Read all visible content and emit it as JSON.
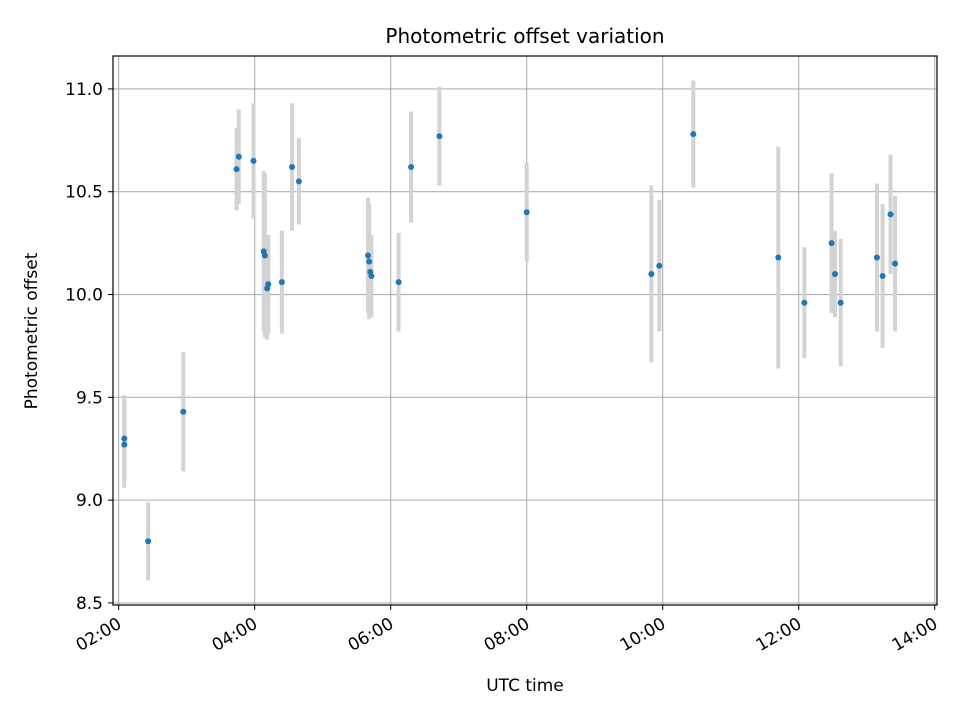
{
  "chart_data": {
    "type": "scatter",
    "title": "Photometric offset variation",
    "xlabel": "UTC time",
    "ylabel": "Photometric offset",
    "xlim": [
      "01:55",
      "14:02"
    ],
    "ylim": [
      8.49,
      11.16
    ],
    "xticks": [
      "02:00",
      "04:00",
      "06:00",
      "08:00",
      "10:00",
      "12:00",
      "14:00"
    ],
    "yticks": [
      "8.5",
      "9.0",
      "9.5",
      "10.0",
      "10.5",
      "11.0"
    ],
    "grid": true,
    "legend": "none",
    "point_color": "#1f77b4",
    "errorbar_color": "#d3d3d3",
    "points": [
      {
        "x": "02:05",
        "y": 9.3,
        "err": 0.21
      },
      {
        "x": "02:05",
        "y": 9.27,
        "err": 0.21
      },
      {
        "x": "02:26",
        "y": 8.8,
        "err": 0.19
      },
      {
        "x": "02:57",
        "y": 9.43,
        "err": 0.29
      },
      {
        "x": "03:44",
        "y": 10.61,
        "err": 0.2
      },
      {
        "x": "03:46",
        "y": 10.67,
        "err": 0.23
      },
      {
        "x": "03:59",
        "y": 10.65,
        "err": 0.28
      },
      {
        "x": "04:08",
        "y": 10.21,
        "err": 0.39
      },
      {
        "x": "04:09",
        "y": 10.19,
        "err": 0.4
      },
      {
        "x": "04:11",
        "y": 10.03,
        "err": 0.25
      },
      {
        "x": "04:12",
        "y": 10.05,
        "err": 0.24
      },
      {
        "x": "04:24",
        "y": 10.06,
        "err": 0.25
      },
      {
        "x": "04:33",
        "y": 10.62,
        "err": 0.31
      },
      {
        "x": "04:39",
        "y": 10.55,
        "err": 0.21
      },
      {
        "x": "05:40",
        "y": 10.19,
        "err": 0.28
      },
      {
        "x": "05:41",
        "y": 10.16,
        "err": 0.28
      },
      {
        "x": "05:42",
        "y": 10.11,
        "err": 0.18
      },
      {
        "x": "05:43",
        "y": 10.09,
        "err": 0.2
      },
      {
        "x": "06:07",
        "y": 10.06,
        "err": 0.24
      },
      {
        "x": "06:18",
        "y": 10.62,
        "err": 0.27
      },
      {
        "x": "06:43",
        "y": 10.77,
        "err": 0.24
      },
      {
        "x": "08:00",
        "y": 10.4,
        "err": 0.24
      },
      {
        "x": "09:50",
        "y": 10.1,
        "err": 0.43
      },
      {
        "x": "09:57",
        "y": 10.14,
        "err": 0.32
      },
      {
        "x": "10:27",
        "y": 10.78,
        "err": 0.26
      },
      {
        "x": "11:42",
        "y": 10.18,
        "err": 0.54
      },
      {
        "x": "12:05",
        "y": 9.96,
        "err": 0.27
      },
      {
        "x": "12:29",
        "y": 10.25,
        "err": 0.34
      },
      {
        "x": "12:32",
        "y": 10.1,
        "err": 0.21
      },
      {
        "x": "12:37",
        "y": 9.96,
        "err": 0.31
      },
      {
        "x": "13:09",
        "y": 10.18,
        "err": 0.36
      },
      {
        "x": "13:14",
        "y": 10.09,
        "err": 0.35
      },
      {
        "x": "13:21",
        "y": 10.39,
        "err": 0.29
      },
      {
        "x": "13:25",
        "y": 10.15,
        "err": 0.33
      }
    ]
  }
}
